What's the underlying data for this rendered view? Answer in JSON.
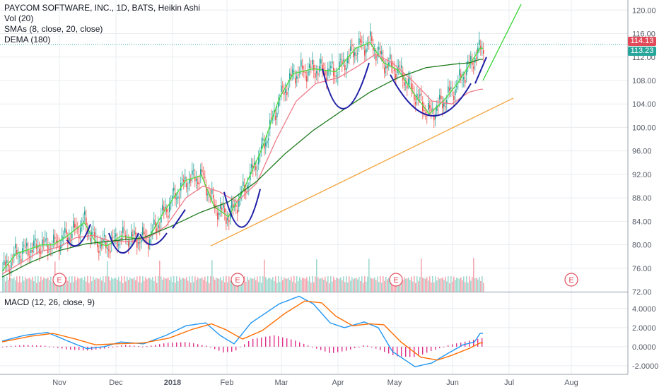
{
  "header": {
    "title": "PAYCOM SOFTWARE, INC., 1D, BATS, Heikin Ashi",
    "vol": "Vol (20)",
    "smas": "SMAs (8, close, 20, close)",
    "dema": "DEMA (180)",
    "macd": "MACD (12, 26, close, 9)"
  },
  "price_tags": {
    "last": "114.13",
    "secondary": "113.23"
  },
  "colors": {
    "up": "#26a69a",
    "down": "#ef5350",
    "sma8": "#4cdd3c",
    "sma20": "#ef7b8a",
    "dema": "#1f7a1f",
    "pattern": "#1e1ea6",
    "trend": "#f2a33a",
    "macd": "#2196f3",
    "signal": "#ff6d00",
    "hist": "#e0308a",
    "earnings": "#e04b5a",
    "grid": "#e9ecf0",
    "axis": "#555b66"
  },
  "chart_data": [
    {
      "type": "candlestick",
      "title": "PAYCOM SOFTWARE, INC., 1D, BATS, Heikin Ashi",
      "x_tick_labels": [
        "Nov",
        "Dec",
        "2018",
        "Feb",
        "Mar",
        "Apr",
        "May",
        "Jun",
        "Jul",
        "Aug"
      ],
      "y_tick_labels": [
        "120.00",
        "116.00",
        "112.00",
        "108.00",
        "104.00",
        "100.00",
        "96.00",
        "92.00",
        "88.00",
        "84.00",
        "80.00",
        "76.00",
        "72.00"
      ],
      "ylim": [
        72,
        121
      ],
      "last_price": 114.13,
      "secondary_price": 113.23,
      "earnings_markers": [
        "E",
        "E",
        "E",
        "E"
      ],
      "series": [
        {
          "name": "SMA 8",
          "anchors": [
            [
              0,
              75.5
            ],
            [
              10,
              78.5
            ],
            [
              20,
              79.3
            ],
            [
              28,
              80.0
            ],
            [
              36,
              80.0
            ],
            [
              46,
              81.5
            ],
            [
              58,
              83.8
            ],
            [
              66,
              80.5
            ],
            [
              74,
              79.8
            ],
            [
              84,
              81.5
            ],
            [
              96,
              81.0
            ],
            [
              104,
              81.3
            ],
            [
              114,
              85.5
            ],
            [
              130,
              91.0
            ],
            [
              141,
              91.8
            ],
            [
              150,
              86.5
            ],
            [
              160,
              84.8
            ],
            [
              170,
              89.0
            ],
            [
              184,
              96.5
            ],
            [
              196,
              105.0
            ],
            [
              206,
              109.2
            ],
            [
              220,
              110.0
            ],
            [
              236,
              109.5
            ],
            [
              250,
              113.5
            ],
            [
              260,
              114.5
            ],
            [
              270,
              111.0
            ],
            [
              280,
              109.8
            ],
            [
              292,
              105.5
            ],
            [
              302,
              102.3
            ],
            [
              312,
              104.5
            ],
            [
              322,
              107.5
            ],
            [
              330,
              110.5
            ],
            [
              338,
              113.5
            ]
          ]
        },
        {
          "name": "SMA 20",
          "anchors": [
            [
              0,
              75.0
            ],
            [
              14,
              77.0
            ],
            [
              26,
              78.8
            ],
            [
              40,
              79.6
            ],
            [
              52,
              81.2
            ],
            [
              64,
              81.6
            ],
            [
              78,
              80.5
            ],
            [
              92,
              80.6
            ],
            [
              104,
              81.3
            ],
            [
              116,
              83.2
            ],
            [
              130,
              88.0
            ],
            [
              142,
              90.0
            ],
            [
              154,
              89.0
            ],
            [
              166,
              87.3
            ],
            [
              180,
              90.5
            ],
            [
              194,
              98.0
            ],
            [
              208,
              104.5
            ],
            [
              222,
              107.5
            ],
            [
              238,
              108.5
            ],
            [
              252,
              110.5
            ],
            [
              264,
              112.5
            ],
            [
              276,
              111.0
            ],
            [
              290,
              108.0
            ],
            [
              304,
              104.5
            ],
            [
              318,
              104.0
            ],
            [
              330,
              106.0
            ],
            [
              338,
              106.5
            ]
          ]
        },
        {
          "name": "DEMA 180",
          "anchors": [
            [
              0,
              74.5
            ],
            [
              20,
              77.0
            ],
            [
              40,
              79.0
            ],
            [
              60,
              80.2
            ],
            [
              80,
              80.7
            ],
            [
              100,
              81.2
            ],
            [
              120,
              83.2
            ],
            [
              140,
              85.5
            ],
            [
              160,
              87.3
            ],
            [
              180,
              90.8
            ],
            [
              200,
              95.5
            ],
            [
              220,
              99.5
            ],
            [
              240,
              102.8
            ],
            [
              260,
              106.0
            ],
            [
              280,
              108.5
            ],
            [
              300,
              110.2
            ],
            [
              320,
              110.8
            ],
            [
              330,
              111.0
            ],
            [
              338,
              111.6
            ]
          ]
        }
      ]
    },
    {
      "type": "bar",
      "title": "Vol (20)",
      "note": "volume histogram, unitless relative heights",
      "values": []
    },
    {
      "type": "line",
      "title": "MACD (12, 26, close, 9)",
      "y_tick_labels": [
        "4.0000",
        "2.0000",
        "0.0000",
        "-2.0000"
      ],
      "ylim": [
        -2.9,
        5.7
      ],
      "series": [
        {
          "name": "MACD",
          "anchors": [
            [
              0,
              0.6
            ],
            [
              16,
              1.2
            ],
            [
              32,
              1.5
            ],
            [
              48,
              0.5
            ],
            [
              60,
              -0.2
            ],
            [
              72,
              0.0
            ],
            [
              84,
              0.5
            ],
            [
              100,
              0.3
            ],
            [
              116,
              1.2
            ],
            [
              130,
              2.2
            ],
            [
              144,
              2.5
            ],
            [
              154,
              1.2
            ],
            [
              164,
              0.3
            ],
            [
              176,
              2.5
            ],
            [
              196,
              4.5
            ],
            [
              210,
              5.3
            ],
            [
              220,
              4.5
            ],
            [
              232,
              2.5
            ],
            [
              242,
              2.0
            ],
            [
              256,
              2.6
            ],
            [
              266,
              2.0
            ],
            [
              276,
              -0.5
            ],
            [
              292,
              -2.1
            ],
            [
              304,
              -1.7
            ],
            [
              314,
              -0.8
            ],
            [
              326,
              0.2
            ],
            [
              334,
              0.5
            ],
            [
              338,
              1.4
            ]
          ]
        },
        {
          "name": "Signal",
          "anchors": [
            [
              0,
              0.5
            ],
            [
              20,
              1.1
            ],
            [
              36,
              1.4
            ],
            [
              52,
              0.8
            ],
            [
              66,
              0.2
            ],
            [
              80,
              0.3
            ],
            [
              100,
              0.4
            ],
            [
              118,
              0.9
            ],
            [
              134,
              1.8
            ],
            [
              148,
              2.4
            ],
            [
              158,
              1.8
            ],
            [
              170,
              0.8
            ],
            [
              184,
              1.7
            ],
            [
              200,
              3.5
            ],
            [
              214,
              4.8
            ],
            [
              226,
              4.6
            ],
            [
              236,
              3.2
            ],
            [
              248,
              2.2
            ],
            [
              260,
              2.4
            ],
            [
              270,
              2.3
            ],
            [
              282,
              0.5
            ],
            [
              296,
              -1.1
            ],
            [
              308,
              -1.4
            ],
            [
              318,
              -0.9
            ],
            [
              330,
              -0.2
            ],
            [
              338,
              0.4
            ]
          ]
        },
        {
          "name": "Histogram",
          "anchors": [
            [
              0,
              0.0
            ],
            [
              16,
              0.2
            ],
            [
              30,
              0.1
            ],
            [
              46,
              -0.3
            ],
            [
              60,
              -0.4
            ],
            [
              72,
              -0.2
            ],
            [
              86,
              0.2
            ],
            [
              100,
              0.0
            ],
            [
              116,
              0.4
            ],
            [
              130,
              0.5
            ],
            [
              144,
              0.1
            ],
            [
              156,
              -0.6
            ],
            [
              164,
              -0.5
            ],
            [
              176,
              0.8
            ],
            [
              192,
              1.2
            ],
            [
              206,
              0.7
            ],
            [
              220,
              -0.1
            ],
            [
              232,
              -0.7
            ],
            [
              244,
              -0.4
            ],
            [
              256,
              0.2
            ],
            [
              266,
              -0.3
            ],
            [
              278,
              -1.0
            ],
            [
              292,
              -1.1
            ],
            [
              304,
              -0.4
            ],
            [
              316,
              0.2
            ],
            [
              326,
              0.5
            ],
            [
              338,
              0.9
            ]
          ]
        }
      ]
    }
  ]
}
